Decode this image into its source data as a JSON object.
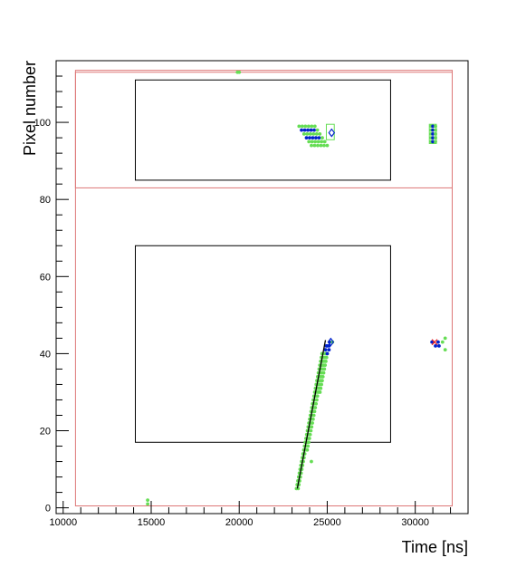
{
  "chart_data": {
    "type": "scatter",
    "title": "",
    "xlabel": "Time [ns]",
    "ylabel": "Pixel number",
    "xlim": [
      9600,
      33000
    ],
    "ylim": [
      -1.5,
      116
    ],
    "x_ticks": [
      10000,
      15000,
      20000,
      25000,
      30000
    ],
    "x_tick_labels": [
      "10000",
      "15000",
      "20000",
      "25000",
      "30000"
    ],
    "y_ticks": [
      0,
      20,
      40,
      60,
      80,
      100
    ],
    "y_tick_labels": [
      "0",
      "20",
      "40",
      "60",
      "80",
      "100"
    ],
    "grid": false,
    "colors": {
      "green": "#66dd55",
      "blue": "#0022cc",
      "red_box": "#dd7777",
      "black_box": "#000000",
      "fit_line": "#000000",
      "red_mark": "#ee2222"
    },
    "regions": [
      {
        "kind": "outer",
        "x": [
          10700,
          32100
        ],
        "y": [
          0.5,
          113
        ]
      },
      {
        "kind": "outer",
        "x": [
          10700,
          32100
        ],
        "y": [
          83,
          113.5
        ]
      },
      {
        "kind": "inner",
        "x": [
          14100,
          28600
        ],
        "y": [
          17,
          68
        ]
      },
      {
        "kind": "inner",
        "x": [
          14100,
          28600
        ],
        "y": [
          85,
          111
        ]
      }
    ],
    "fit_line": {
      "x": [
        23300,
        24900
      ],
      "y": [
        5,
        43.5
      ]
    },
    "cluster_boxes": [
      {
        "x": [
          24950,
          25400
        ],
        "y": [
          95.5,
          99.5
        ]
      },
      {
        "x": [
          30800,
          31200
        ],
        "y": [
          94.5,
          99.5
        ]
      }
    ],
    "markers": [
      {
        "x": 25250,
        "y": 97.3,
        "shape": "diamond",
        "color": "#0022cc"
      },
      {
        "x": 25200,
        "y": 43,
        "shape": "diamond",
        "color": "#0022cc"
      },
      {
        "x": 31100,
        "y": 43,
        "shape": "cross",
        "color": "#ee2222"
      }
    ]
  }
}
